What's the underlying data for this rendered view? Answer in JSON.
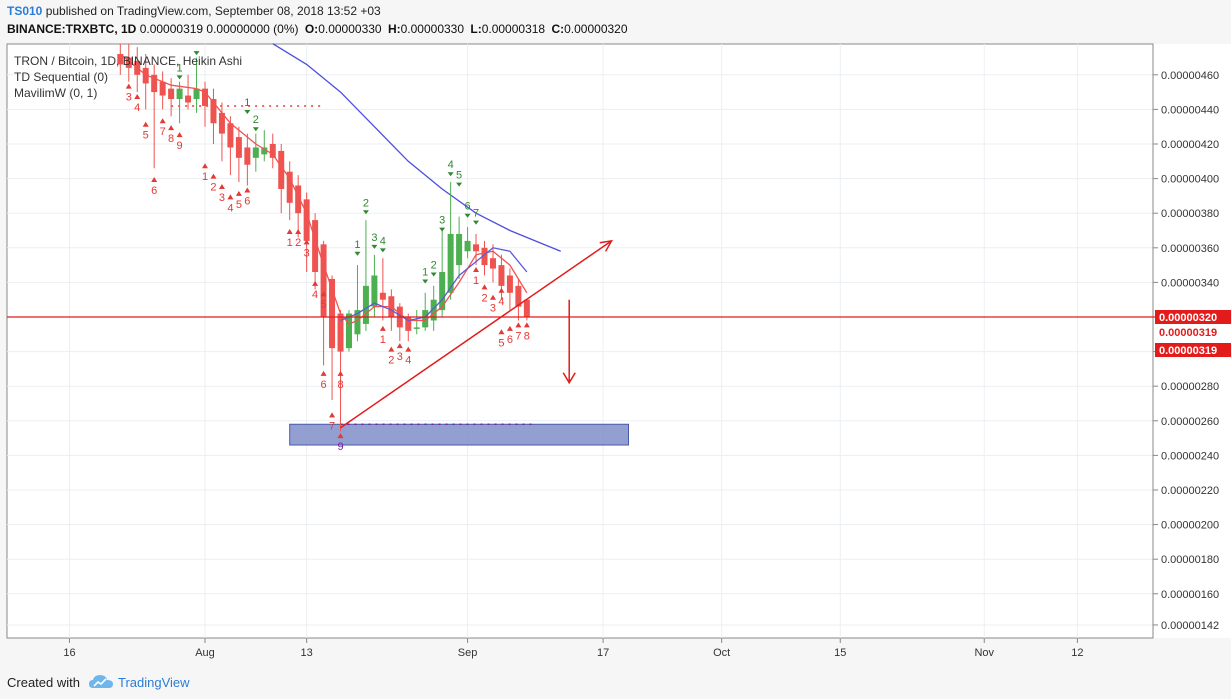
{
  "header": {
    "author": "TS010",
    "published_text": "published on TradingView.com, September 08, 2018 13:52 +03",
    "symbol_line": "BINANCE:TRXBTC, 1D",
    "ohlc_values": "0.00000319 0.00000000 (0%)",
    "o_label": "O:",
    "o_value": "0.00000330",
    "h_label": "H:",
    "h_value": "0.00000330",
    "l_label": "L:",
    "l_value": "0.00000318",
    "c_label": "C:",
    "c_value": "0.00000320"
  },
  "legend": {
    "title": "TRON / Bitcoin, 1D, BINANCE, Heikin Ashi",
    "indicator1": "TD Sequential (0)",
    "indicator2": "MavilimW (0, 1)"
  },
  "price_labels": {
    "current_red": "0.00000320",
    "label2": "0.00000319",
    "label3": "0.00000319"
  },
  "footer": {
    "created_with": "Created with",
    "brand": "TradingView"
  },
  "colors": {
    "up": "#4caf50",
    "down": "#ef5350",
    "mavilim_red": "#ef5350",
    "mavilim_blue": "#5b5bd6",
    "slow_ma": "#4d4de0",
    "price_line": "#e31b1b",
    "zone_fill": "#7f8ec8",
    "td_green": "#2e8b2e",
    "td_red": "#e53935"
  },
  "chart_data": {
    "type": "candlestick",
    "title": "TRON / Bitcoin, 1D, BINANCE, Heikin Ashi",
    "y_ticks": [
      "0.00000460",
      "0.00000440",
      "0.00000420",
      "0.00000400",
      "0.00000380",
      "0.00000360",
      "0.00000340",
      "0.00000320",
      "0.00000300",
      "0.00000280",
      "0.00000260",
      "0.00000240",
      "0.00000220",
      "0.00000200",
      "0.00000180",
      "0.00000160",
      "0.00000142"
    ],
    "y_tick_values": [
      460,
      440,
      420,
      400,
      380,
      360,
      340,
      320,
      300,
      280,
      260,
      240,
      220,
      200,
      180,
      160,
      142
    ],
    "x_ticks": [
      "16",
      "Aug",
      "13",
      "Sep",
      "17",
      "Oct",
      "15",
      "Nov",
      "12"
    ],
    "x_tick_days": [
      -16,
      0,
      12,
      31,
      47,
      61,
      75,
      92,
      103
    ],
    "y_unit": "1e-8 BTC",
    "x_unit": "days since Aug 1 2018",
    "ylim": [
      138,
      478
    ],
    "xlim": [
      -23,
      110
    ],
    "candles": [
      {
        "d": -10,
        "o": 472,
        "c": 466,
        "h": 478,
        "l": 460
      },
      {
        "d": -9,
        "o": 470,
        "c": 464,
        "h": 478,
        "l": 456
      },
      {
        "d": -8,
        "o": 468,
        "c": 460,
        "h": 476,
        "l": 450
      },
      {
        "d": -7,
        "o": 464,
        "c": 455,
        "h": 472,
        "l": 440
      },
      {
        "d": -6,
        "o": 460,
        "c": 450,
        "h": 466,
        "l": 406
      },
      {
        "d": -5,
        "o": 456,
        "c": 448,
        "h": 462,
        "l": 440
      },
      {
        "d": -4,
        "o": 452,
        "c": 446,
        "h": 458,
        "l": 436
      },
      {
        "d": -3,
        "o": 446,
        "c": 452,
        "h": 456,
        "l": 432
      },
      {
        "d": -2,
        "o": 448,
        "c": 444,
        "h": 460,
        "l": 440
      },
      {
        "d": -1,
        "o": 446,
        "c": 452,
        "h": 470,
        "l": 438
      },
      {
        "d": 0,
        "o": 452,
        "c": 442,
        "h": 456,
        "l": 430
      },
      {
        "d": 1,
        "o": 446,
        "c": 432,
        "h": 452,
        "l": 420
      },
      {
        "d": 2,
        "o": 438,
        "c": 426,
        "h": 444,
        "l": 410
      },
      {
        "d": 3,
        "o": 432,
        "c": 418,
        "h": 436,
        "l": 402
      },
      {
        "d": 4,
        "o": 424,
        "c": 412,
        "h": 430,
        "l": 398
      },
      {
        "d": 5,
        "o": 418,
        "c": 408,
        "h": 426,
        "l": 396
      },
      {
        "d": 6,
        "o": 412,
        "c": 418,
        "h": 426,
        "l": 404
      },
      {
        "d": 7,
        "o": 414,
        "c": 418,
        "h": 428,
        "l": 410
      },
      {
        "d": 8,
        "o": 420,
        "c": 412,
        "h": 426,
        "l": 406
      },
      {
        "d": 9,
        "o": 416,
        "c": 394,
        "h": 420,
        "l": 380
      },
      {
        "d": 10,
        "o": 404,
        "c": 386,
        "h": 410,
        "l": 376
      },
      {
        "d": 11,
        "o": 396,
        "c": 380,
        "h": 402,
        "l": 366
      },
      {
        "d": 12,
        "o": 388,
        "c": 364,
        "h": 392,
        "l": 346
      },
      {
        "d": 13,
        "o": 376,
        "c": 346,
        "h": 380,
        "l": 336
      },
      {
        "d": 14,
        "o": 362,
        "c": 320,
        "h": 364,
        "l": 292
      },
      {
        "d": 15,
        "o": 342,
        "c": 302,
        "h": 344,
        "l": 272
      },
      {
        "d": 16,
        "o": 322,
        "c": 300,
        "h": 324,
        "l": 254
      },
      {
        "d": 17,
        "o": 302,
        "c": 322,
        "h": 324,
        "l": 300
      },
      {
        "d": 18,
        "o": 310,
        "c": 324,
        "h": 350,
        "l": 306
      },
      {
        "d": 19,
        "o": 316,
        "c": 338,
        "h": 376,
        "l": 312
      },
      {
        "d": 20,
        "o": 326,
        "c": 344,
        "h": 356,
        "l": 320
      },
      {
        "d": 21,
        "o": 334,
        "c": 330,
        "h": 354,
        "l": 318
      },
      {
        "d": 22,
        "o": 332,
        "c": 320,
        "h": 336,
        "l": 312
      },
      {
        "d": 23,
        "o": 326,
        "c": 314,
        "h": 328,
        "l": 306
      },
      {
        "d": 24,
        "o": 320,
        "c": 312,
        "h": 322,
        "l": 306
      },
      {
        "d": 25,
        "o": 314,
        "c": 314,
        "h": 324,
        "l": 310
      },
      {
        "d": 26,
        "o": 314,
        "c": 324,
        "h": 334,
        "l": 312
      },
      {
        "d": 27,
        "o": 318,
        "c": 330,
        "h": 338,
        "l": 312
      },
      {
        "d": 28,
        "o": 324,
        "c": 346,
        "h": 370,
        "l": 320
      },
      {
        "d": 29,
        "o": 334,
        "c": 368,
        "h": 398,
        "l": 330
      },
      {
        "d": 30,
        "o": 350,
        "c": 368,
        "h": 378,
        "l": 342
      },
      {
        "d": 31,
        "o": 358,
        "c": 364,
        "h": 372,
        "l": 354
      },
      {
        "d": 32,
        "o": 362,
        "c": 358,
        "h": 368,
        "l": 350
      },
      {
        "d": 33,
        "o": 360,
        "c": 350,
        "h": 364,
        "l": 344
      },
      {
        "d": 34,
        "o": 354,
        "c": 348,
        "h": 362,
        "l": 340
      },
      {
        "d": 35,
        "o": 350,
        "c": 338,
        "h": 356,
        "l": 330
      },
      {
        "d": 36,
        "o": 344,
        "c": 334,
        "h": 348,
        "l": 324
      },
      {
        "d": 37,
        "o": 338,
        "c": 326,
        "h": 342,
        "l": 318
      },
      {
        "d": 38,
        "o": 330,
        "c": 320,
        "h": 330,
        "l": 318
      }
    ],
    "mavilim_red": [
      [
        -10,
        472
      ],
      [
        -7,
        460
      ],
      [
        -4,
        454
      ],
      [
        -1,
        452
      ],
      [
        0,
        450
      ],
      [
        3,
        432
      ],
      [
        6,
        420
      ],
      [
        8,
        414
      ],
      [
        10,
        400
      ],
      [
        12,
        380
      ],
      [
        14,
        350
      ],
      [
        16,
        322
      ],
      [
        17,
        316
      ],
      [
        18,
        318
      ],
      [
        20,
        326
      ],
      [
        22,
        326
      ],
      [
        24,
        318
      ],
      [
        26,
        318
      ],
      [
        28,
        326
      ],
      [
        30,
        340
      ],
      [
        31,
        348
      ],
      [
        32,
        356
      ],
      [
        34,
        358
      ],
      [
        36,
        350
      ],
      [
        38,
        334
      ]
    ],
    "mavilim_blue": [
      [
        16,
        318
      ],
      [
        18,
        322
      ],
      [
        20,
        328
      ],
      [
        22,
        324
      ],
      [
        24,
        318
      ],
      [
        26,
        320
      ],
      [
        28,
        330
      ],
      [
        30,
        344
      ],
      [
        32,
        352
      ],
      [
        34,
        360
      ],
      [
        36,
        358
      ],
      [
        38,
        346
      ]
    ],
    "slow_ma": [
      [
        8,
        478
      ],
      [
        12,
        466
      ],
      [
        16,
        450
      ],
      [
        20,
        430
      ],
      [
        24,
        410
      ],
      [
        28,
        394
      ],
      [
        32,
        380
      ],
      [
        36,
        370
      ],
      [
        40,
        362
      ],
      [
        42,
        358
      ]
    ],
    "td_up": [
      {
        "d": -3,
        "n": "1",
        "y": 462
      },
      {
        "d": -1,
        "n": "",
        "y": 476
      },
      {
        "d": 5,
        "n": "1",
        "y": 442
      },
      {
        "d": 6,
        "n": "2",
        "y": 432
      },
      {
        "d": 18,
        "n": "1",
        "y": 360
      },
      {
        "d": 19,
        "n": "2",
        "y": 384
      },
      {
        "d": 20,
        "n": "3",
        "y": 364
      },
      {
        "d": 21,
        "n": "4",
        "y": 362
      },
      {
        "d": 26,
        "n": "1",
        "y": 344
      },
      {
        "d": 27,
        "n": "2",
        "y": 348
      },
      {
        "d": 28,
        "n": "3",
        "y": 374
      },
      {
        "d": 29,
        "n": "4",
        "y": 406
      },
      {
        "d": 30,
        "n": "5",
        "y": 400
      },
      {
        "d": 31,
        "n": "6",
        "y": 382
      },
      {
        "d": 32,
        "n": "7",
        "y": 378
      }
    ],
    "td_down": [
      {
        "d": -9,
        "n": "3",
        "y": 452
      },
      {
        "d": -8,
        "n": "4",
        "y": 446
      },
      {
        "d": -7,
        "n": "5",
        "y": 430
      },
      {
        "d": -6,
        "n": "6",
        "y": 398
      },
      {
        "d": -5,
        "n": "7",
        "y": 432
      },
      {
        "d": -4,
        "n": "8",
        "y": 428
      },
      {
        "d": -3,
        "n": "9",
        "y": 424
      },
      {
        "d": 0,
        "n": "1",
        "y": 406
      },
      {
        "d": 1,
        "n": "2",
        "y": 400
      },
      {
        "d": 2,
        "n": "3",
        "y": 394
      },
      {
        "d": 3,
        "n": "4",
        "y": 388
      },
      {
        "d": 4,
        "n": "5",
        "y": 390
      },
      {
        "d": 5,
        "n": "6",
        "y": 392
      },
      {
        "d": 10,
        "n": "1",
        "y": 368
      },
      {
        "d": 11,
        "n": "2",
        "y": 368
      },
      {
        "d": 12,
        "n": "3",
        "y": 362
      },
      {
        "d": 13,
        "n": "4",
        "y": 338
      },
      {
        "d": 14,
        "n": "5",
        "y": 332
      },
      {
        "d": 14,
        "n": "6",
        "y": 286
      },
      {
        "d": 15,
        "n": "7",
        "y": 262
      },
      {
        "d": 16,
        "n": "8",
        "y": 286
      },
      {
        "d": 16,
        "n": "9",
        "y": 250
      },
      {
        "d": 21,
        "n": "1",
        "y": 312
      },
      {
        "d": 22,
        "n": "2",
        "y": 300
      },
      {
        "d": 23,
        "n": "3",
        "y": 302
      },
      {
        "d": 24,
        "n": "4",
        "y": 300
      },
      {
        "d": 32,
        "n": "1",
        "y": 346
      },
      {
        "d": 33,
        "n": "2",
        "y": 336
      },
      {
        "d": 34,
        "n": "3",
        "y": 330
      },
      {
        "d": 35,
        "n": "4",
        "y": 334
      },
      {
        "d": 35,
        "n": "5",
        "y": 310
      },
      {
        "d": 36,
        "n": "6",
        "y": 312
      },
      {
        "d": 37,
        "n": "7",
        "y": 314
      },
      {
        "d": 38,
        "n": "8",
        "y": 314
      }
    ],
    "price_line": 320,
    "zone": {
      "d1": 10,
      "d2": 50,
      "top": 258,
      "bottom": 246
    },
    "trendline": {
      "d1": 16,
      "y1": 256,
      "d2": 48,
      "y2": 364
    },
    "arrow_down": {
      "d": 43,
      "y1": 330,
      "y2": 282
    },
    "dotted_lines": [
      {
        "d1": -4,
        "d2": 14,
        "y": 442
      },
      {
        "d1": 16,
        "d2": 39,
        "y": 258
      }
    ]
  }
}
